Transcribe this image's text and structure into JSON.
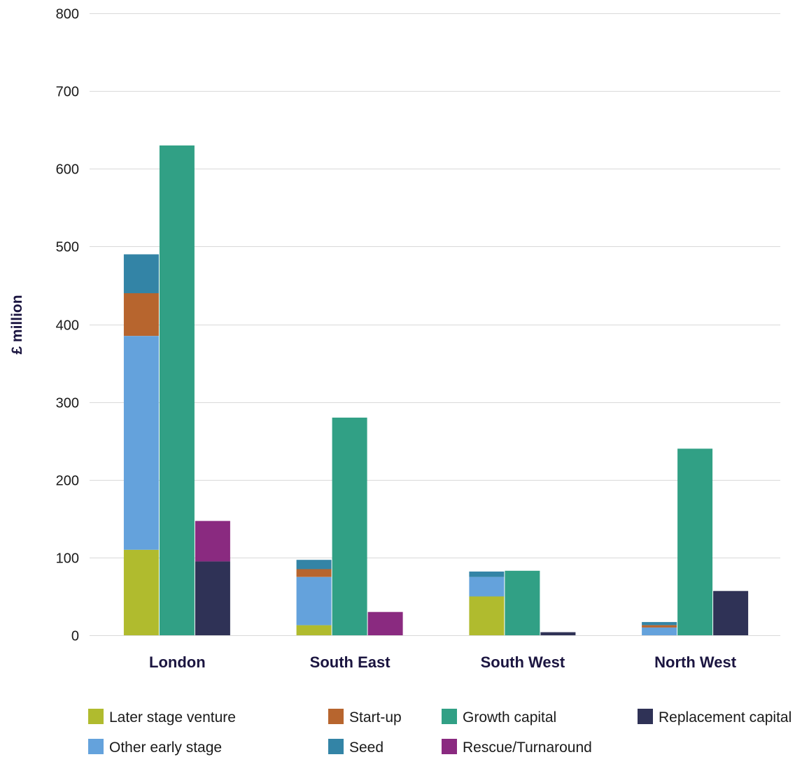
{
  "chart_data": {
    "type": "bar",
    "stacked_groups": true,
    "ylabel": "£ million",
    "xlabel": "",
    "ylim": [
      0,
      800
    ],
    "yticks": [
      0,
      100,
      200,
      300,
      400,
      500,
      600,
      700,
      800
    ],
    "grid": true,
    "legend_position": "bottom",
    "categories": [
      "London",
      "South East",
      "South West",
      "North West"
    ],
    "stacks": [
      "stack-1",
      "stack-2",
      "stack-3"
    ],
    "series": [
      {
        "name": "Later stage venture",
        "stack": "stack-1",
        "color": "#b0bb2e",
        "values": [
          110,
          13,
          50,
          0
        ]
      },
      {
        "name": "Other early stage",
        "stack": "stack-1",
        "color": "#64a2dc",
        "values": [
          275,
          62,
          25,
          10
        ]
      },
      {
        "name": "Start-up",
        "stack": "stack-1",
        "color": "#b7652e",
        "values": [
          55,
          10,
          0,
          3
        ]
      },
      {
        "name": "Seed",
        "stack": "stack-1",
        "color": "#3384a6",
        "values": [
          50,
          12,
          7,
          4
        ]
      },
      {
        "name": "Growth capital",
        "stack": "stack-2",
        "color": "#31a085",
        "values": [
          630,
          280,
          83,
          240
        ]
      },
      {
        "name": "Replacement capital",
        "stack": "stack-3",
        "color": "#2f3256",
        "values": [
          95,
          0,
          4,
          57
        ]
      },
      {
        "name": "Rescue/Turnaround",
        "stack": "stack-3",
        "color": "#8a2a80",
        "values": [
          52,
          30,
          0,
          0
        ]
      }
    ],
    "legend": [
      {
        "name": "Later stage venture",
        "color": "#b0bb2e"
      },
      {
        "name": "Start-up",
        "color": "#b7652e"
      },
      {
        "name": "Growth capital",
        "color": "#31a085"
      },
      {
        "name": "Replacement capital",
        "color": "#2f3256"
      },
      {
        "name": "Other early stage",
        "color": "#64a2dc"
      },
      {
        "name": "Seed",
        "color": "#3384a6"
      },
      {
        "name": "Rescue/Turnaround",
        "color": "#8a2a80"
      }
    ]
  }
}
